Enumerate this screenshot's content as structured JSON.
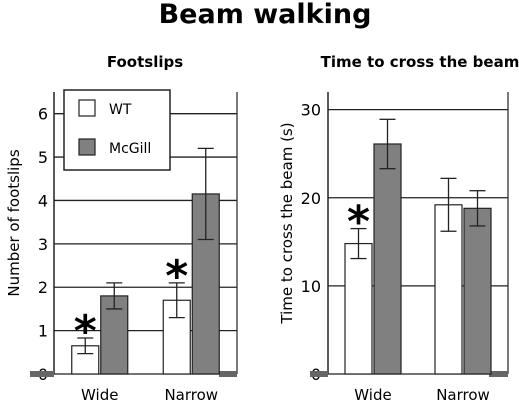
{
  "figure_title": "Beam walking",
  "legend": {
    "items": [
      {
        "label": "WT",
        "color": "#ffffff"
      },
      {
        "label": "McGill",
        "color": "#808080"
      }
    ],
    "placement": "top-left"
  },
  "annotations": {
    "significance_symbol": "*"
  },
  "chart_data": [
    {
      "type": "bar",
      "title": "Footslips",
      "xlabel": "",
      "ylabel": "Number of footslips",
      "categories": [
        "Wide",
        "Narrow"
      ],
      "ylim": [
        0,
        6.5
      ],
      "yticks": [
        0,
        1,
        2,
        3,
        4,
        5,
        6
      ],
      "grid": "horizontal",
      "series": [
        {
          "name": "WT",
          "color": "#ffffff",
          "values": [
            0.65,
            1.7
          ],
          "errors": [
            0.18,
            0.4
          ]
        },
        {
          "name": "McGill",
          "color": "#808080",
          "values": [
            1.8,
            4.15
          ],
          "errors": [
            0.3,
            1.05
          ]
        }
      ],
      "significance": [
        {
          "category": "Wide",
          "symbol": "*"
        },
        {
          "category": "Narrow",
          "symbol": "*"
        }
      ]
    },
    {
      "type": "bar",
      "title": "Time to cross the beam",
      "xlabel": "",
      "ylabel": "Time to cross the beam (s)",
      "categories": [
        "Wide",
        "Narrow"
      ],
      "ylim": [
        0,
        32
      ],
      "yticks": [
        0,
        10,
        20,
        30
      ],
      "grid": "horizontal",
      "series": [
        {
          "name": "WT",
          "color": "#ffffff",
          "values": [
            14.8,
            19.2
          ],
          "errors": [
            1.7,
            3.0
          ]
        },
        {
          "name": "McGill",
          "color": "#808080",
          "values": [
            26.1,
            18.8
          ],
          "errors": [
            2.8,
            2.0
          ]
        }
      ],
      "significance": [
        {
          "category": "Wide",
          "symbol": "*"
        }
      ]
    }
  ]
}
